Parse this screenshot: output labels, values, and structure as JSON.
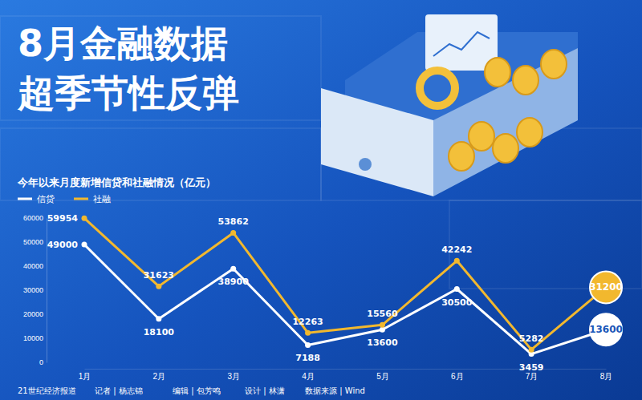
{
  "chart_data": {
    "type": "line",
    "title": [
      "8月金融数据",
      "超季节性反弹"
    ],
    "subtitle": "今年以来月度新增信贷和社融情况（亿元）",
    "categories": [
      "1月",
      "2月",
      "3月",
      "4月",
      "5月",
      "6月",
      "7月",
      "8月"
    ],
    "series": [
      {
        "name": "信贷",
        "color": "#ffffff",
        "values": [
          49000,
          18100,
          38900,
          7188,
          13600,
          30500,
          3459,
          13600
        ]
      },
      {
        "name": "社融",
        "color": "#f2b82e",
        "values": [
          59954,
          31623,
          53862,
          12263,
          15560,
          42242,
          5282,
          31200
        ]
      }
    ],
    "ylim": [
      0,
      60000
    ],
    "yticks": [
      0,
      10000,
      20000,
      30000,
      40000,
      50000,
      60000
    ],
    "grid": false,
    "legend": "top-left",
    "data_labels": true,
    "annotations": [
      "21世纪经济报道",
      "记者 | 杨志锦",
      "编辑 | 包芳鸣",
      "设计 | 林潇",
      "数据来源 | Wind"
    ]
  }
}
